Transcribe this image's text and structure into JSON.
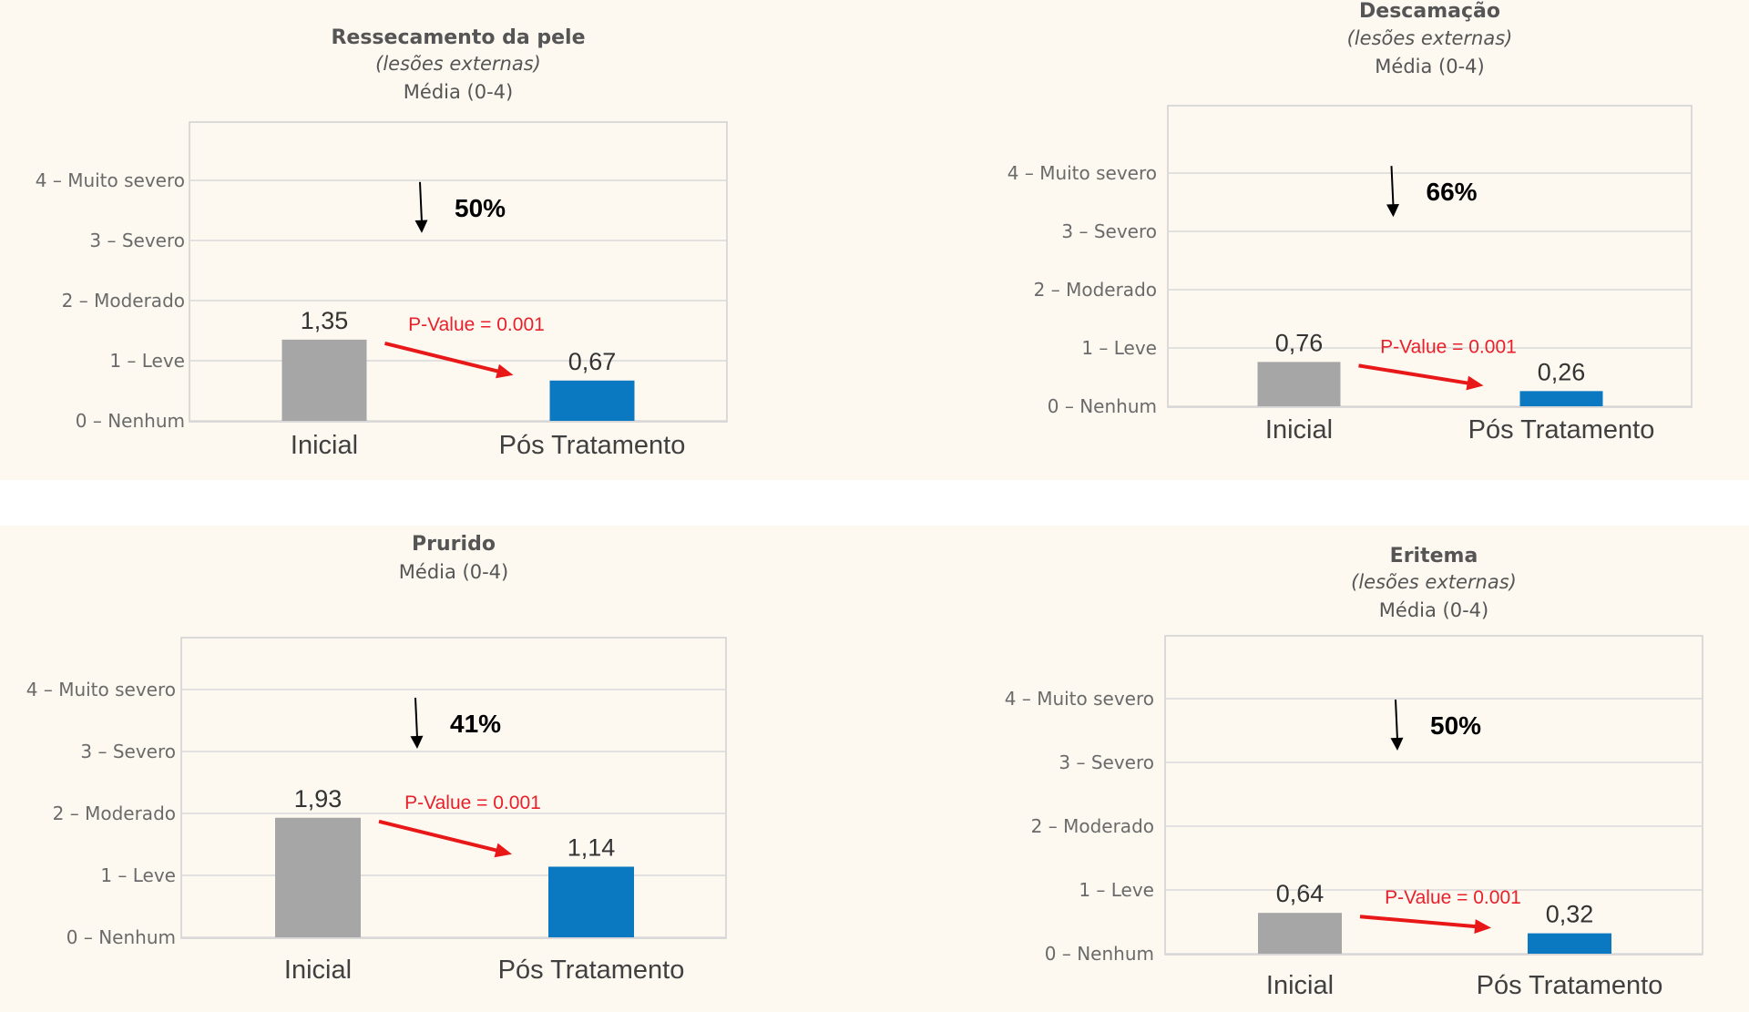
{
  "colors": {
    "background_band": "#fdf9f1",
    "initial_bar": "#a6a6a6",
    "post_bar": "#0a79c2",
    "pvalue_text": "#e8202a",
    "trend_arrow": "#e81818",
    "gridline": "#d9d9d9",
    "plot_frame": "#d0d0d0"
  },
  "y_axis_labels": [
    "0 – Nenhum",
    "1 – Leve",
    "2 – Moderado",
    "3 – Severo",
    "4 – Muito severo"
  ],
  "chart_data": [
    {
      "type": "bar",
      "title": "Ressecamento da pele",
      "subtitle": "(lesões externas)",
      "unit_label": "Média (0-4)",
      "categories": [
        "Inicial",
        "Pós Tratamento"
      ],
      "values": [
        1.35,
        0.67
      ],
      "value_labels": [
        "1,35",
        "0,67"
      ],
      "reduction_label": "50%",
      "pvalue_label": "P-Value = 0.001",
      "ylim": [
        0,
        5
      ],
      "grid": true,
      "legend": "none"
    },
    {
      "type": "bar",
      "title": "Descamação",
      "subtitle": "(lesões externas)",
      "unit_label": "Média (0-4)",
      "categories": [
        "Inicial",
        "Pós Tratamento"
      ],
      "values": [
        0.76,
        0.26
      ],
      "value_labels": [
        "0,76",
        "0,26"
      ],
      "reduction_label": "66%",
      "pvalue_label": "P-Value = 0.001",
      "ylim": [
        0,
        5
      ],
      "grid": true,
      "legend": "none"
    },
    {
      "type": "bar",
      "title": "Prurido",
      "unit_label": "Média (0-4)",
      "categories": [
        "Inicial",
        "Pós Tratamento"
      ],
      "values": [
        1.93,
        1.14
      ],
      "value_labels": [
        "1,93",
        "1,14"
      ],
      "reduction_label": "41%",
      "pvalue_label": "P-Value = 0.001",
      "ylim": [
        0,
        5
      ],
      "grid": true,
      "legend": "none"
    },
    {
      "type": "bar",
      "title": "Eritema",
      "subtitle": "(lesões externas)",
      "unit_label": "Média (0-4)",
      "categories": [
        "Inicial",
        "Pós Tratamento"
      ],
      "values": [
        0.64,
        0.32
      ],
      "value_labels": [
        "0,64",
        "0,32"
      ],
      "reduction_label": "50%",
      "pvalue_label": "P-Value = 0.001",
      "ylim": [
        0,
        5
      ],
      "grid": true,
      "legend": "none"
    }
  ]
}
